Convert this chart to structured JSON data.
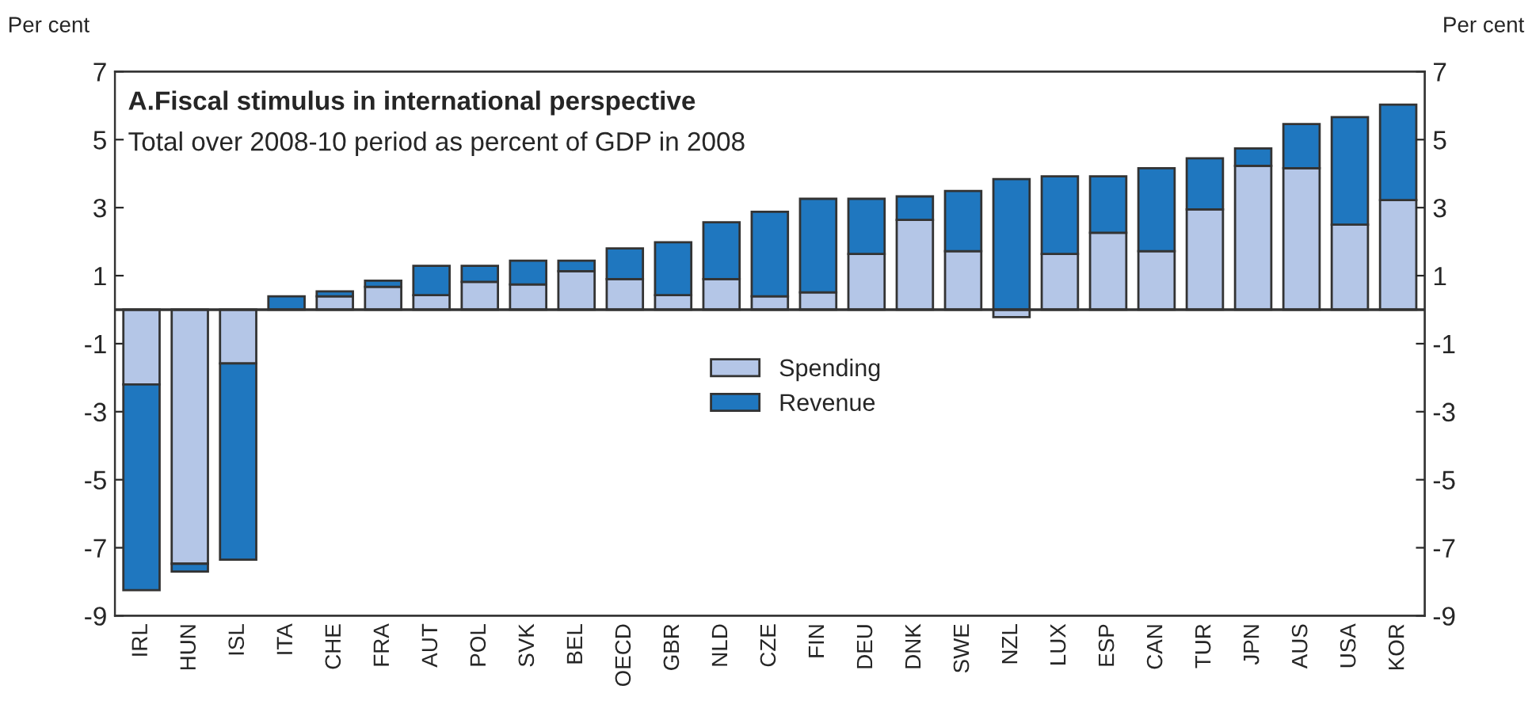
{
  "chart_data": {
    "type": "bar",
    "stacked": true,
    "title": "A.Fiscal stimulus in international perspective",
    "subtitle": "Total over 2008-10 period as percent of GDP in 2008",
    "ylabel": "Per cent",
    "y2label": "Per cent",
    "categories": [
      "IRL",
      "HUN",
      "ISL",
      "ITA",
      "CHE",
      "FRA",
      "AUT",
      "POL",
      "SVK",
      "BEL",
      "OECD",
      "GBR",
      "NLD",
      "CZE",
      "FIN",
      "DEU",
      "DNK",
      "SWE",
      "NZL",
      "LUX",
      "ESP",
      "CAN",
      "TUR",
      "JPN",
      "AUS",
      "USA",
      "KOR"
    ],
    "series": [
      {
        "name": "Spending",
        "color": "#b4c6e7",
        "values": [
          -2.2,
          -7.47,
          -1.58,
          null,
          0.39,
          0.67,
          0.43,
          0.82,
          0.74,
          1.13,
          0.9,
          0.43,
          0.9,
          0.39,
          0.51,
          1.64,
          2.64,
          1.72,
          -0.22,
          1.64,
          2.26,
          1.72,
          2.95,
          4.23,
          4.16,
          2.5,
          3.22
        ]
      },
      {
        "name": "Revenue",
        "color": "#1f77bf",
        "values": [
          -6.05,
          -0.23,
          -5.77,
          0.39,
          0.15,
          0.18,
          0.86,
          0.47,
          0.7,
          0.31,
          0.9,
          1.55,
          1.67,
          2.49,
          2.75,
          1.62,
          0.69,
          1.77,
          3.84,
          2.28,
          1.66,
          2.44,
          1.5,
          0.51,
          1.3,
          3.16,
          2.81
        ]
      }
    ],
    "ylim": [
      -9,
      7
    ],
    "yticks": [
      -9,
      -7,
      -5,
      -3,
      -1,
      1,
      3,
      5,
      7
    ],
    "y2lim": [
      -9,
      7
    ],
    "y2ticks": [
      -9,
      -7,
      -5,
      -3,
      -1,
      1,
      3,
      5,
      7
    ],
    "legend": "center",
    "grid": false
  }
}
